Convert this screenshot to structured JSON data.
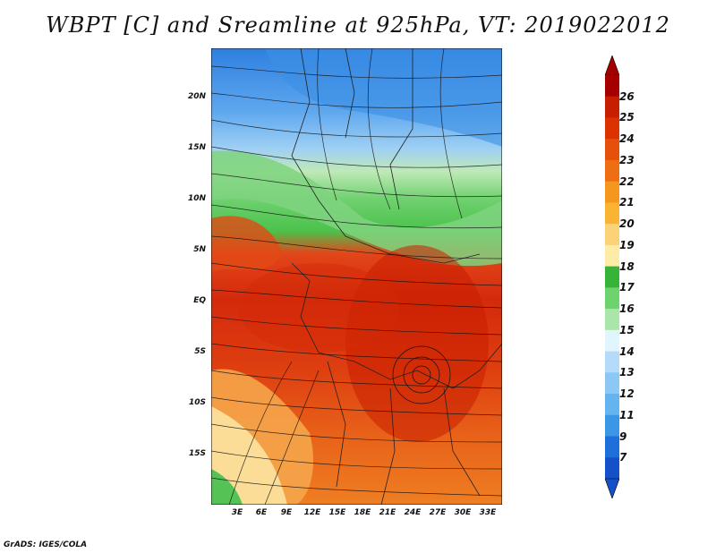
{
  "title": "WBPT [C] and Sreamline at 925hPa, VT: 2019022012",
  "credit": "GrADS: IGES/COLA",
  "lat_ticks": [
    "20N",
    "15N",
    "10N",
    "5N",
    "EQ",
    "5S",
    "10S",
    "15S"
  ],
  "lon_ticks": [
    "3E",
    "6E",
    "9E",
    "12E",
    "15E",
    "18E",
    "21E",
    "24E",
    "27E",
    "30E",
    "33E"
  ],
  "colorbar": {
    "labels": [
      "26",
      "25",
      "24",
      "23",
      "22",
      "21",
      "20",
      "19",
      "18",
      "17",
      "16",
      "15",
      "14",
      "13",
      "12",
      "11",
      "9",
      "7"
    ],
    "colors": [
      "#a50000",
      "#c81e00",
      "#dc3200",
      "#e6500a",
      "#ef6e14",
      "#f5961e",
      "#fab432",
      "#fcd278",
      "#fdeca6",
      "#37b437",
      "#6ed26e",
      "#aae6aa",
      "#e1f5ff",
      "#b4dcfa",
      "#8cc8f5",
      "#64b4f0",
      "#3c96e6",
      "#1e6edc",
      "#1450c8"
    ]
  }
}
